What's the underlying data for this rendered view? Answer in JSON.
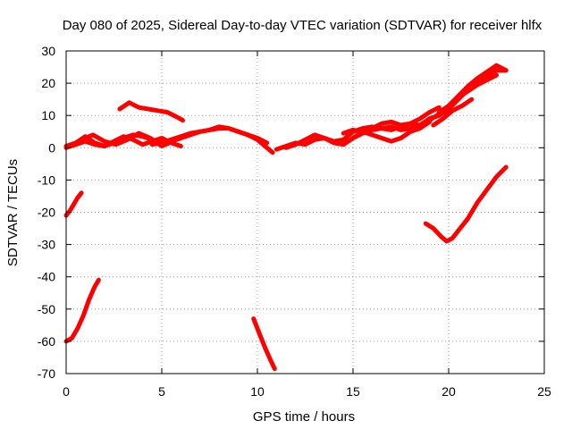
{
  "chart_data": {
    "type": "line",
    "title": "Day 080 of 2025, Sidereal Day-to-day VTEC variation (SDTVAR) for receiver hlfx",
    "xlabel": "GPS time / hours",
    "ylabel": "SDTVAR / TECUs",
    "xlim": [
      0,
      25
    ],
    "ylim": [
      -70,
      30
    ],
    "xticks": [
      0,
      5,
      10,
      15,
      20,
      25
    ],
    "yticks": [
      -70,
      -60,
      -50,
      -40,
      -30,
      -20,
      -10,
      0,
      10,
      20,
      30
    ],
    "grid": true,
    "color": "#ff0000",
    "series": [
      {
        "name": "arc-1",
        "x": [
          0,
          0.2,
          0.4,
          0.6,
          0.8
        ],
        "y": [
          -21,
          -19.5,
          -17.5,
          -15.5,
          -14
        ]
      },
      {
        "name": "arc-2",
        "x": [
          0,
          0.3,
          0.6,
          0.9,
          1.2,
          1.5,
          1.7
        ],
        "y": [
          -60,
          -59,
          -56,
          -52,
          -47,
          -43,
          -41
        ]
      },
      {
        "name": "arc-3",
        "x": [
          0,
          0.5,
          1,
          1.5,
          2,
          2.5,
          3,
          3.5,
          4,
          4.5,
          5,
          5.5,
          6
        ],
        "y": [
          0.5,
          1.5,
          3.5,
          1.5,
          0.5,
          1.5,
          3,
          4,
          3.5,
          2.5,
          1.5,
          2.5,
          3.5
        ]
      },
      {
        "name": "arc-4",
        "x": [
          0,
          0.5,
          1,
          1.5,
          2,
          2.5,
          3,
          3.5,
          4,
          4.5,
          5,
          5.5,
          6
        ],
        "y": [
          0,
          1,
          2,
          1,
          0.5,
          2,
          3.5,
          2.5,
          1,
          2,
          3,
          1.5,
          0.5
        ]
      },
      {
        "name": "arc-5",
        "x": [
          0.2,
          0.8,
          1.4,
          2,
          2.6,
          3.2,
          3.8,
          4.4,
          5,
          5.6
        ],
        "y": [
          0.5,
          2.5,
          4,
          2,
          1,
          2.5,
          4.5,
          3,
          0.5,
          2
        ]
      },
      {
        "name": "arc-6",
        "x": [
          2.8,
          3.3,
          3.8,
          4.3,
          4.8,
          5.3,
          5.8,
          6.1
        ],
        "y": [
          12,
          14,
          12.5,
          12,
          11.5,
          11,
          9.5,
          8.5
        ]
      },
      {
        "name": "arc-7",
        "x": [
          4.5,
          5,
          5.5,
          6,
          6.5,
          7,
          7.5,
          8,
          8.5,
          9,
          9.5,
          10,
          10.5,
          10.8
        ],
        "y": [
          1,
          1.5,
          2.5,
          3.5,
          4.5,
          5,
          5.5,
          6,
          6,
          5,
          4,
          2.5,
          0,
          -1.5
        ]
      },
      {
        "name": "arc-8",
        "x": [
          5.5,
          6,
          6.5,
          7,
          7.5,
          8,
          8.5,
          9,
          9.5,
          10,
          10.5
        ],
        "y": [
          2,
          3,
          4,
          5,
          5.5,
          6.5,
          6,
          5,
          4,
          3,
          1.5
        ]
      },
      {
        "name": "arc-9",
        "x": [
          9.8,
          10.1,
          10.4,
          10.7,
          10.9
        ],
        "y": [
          -53,
          -57.5,
          -62,
          -66,
          -68.5
        ]
      },
      {
        "name": "arc-10",
        "x": [
          11,
          11.5,
          12,
          12.5,
          13,
          13.5,
          14,
          14.5,
          15,
          15.5,
          16,
          16.5,
          17,
          17.5,
          18,
          18.5,
          19
        ],
        "y": [
          -0.5,
          0.5,
          1.5,
          1,
          2.5,
          3,
          1.5,
          1,
          3,
          5,
          4,
          3,
          2,
          3,
          5,
          6,
          8
        ]
      },
      {
        "name": "arc-11",
        "x": [
          11.5,
          12,
          12.5,
          13,
          13.5,
          14,
          14.5,
          15,
          15.5,
          16,
          16.5,
          17,
          17.5,
          18,
          18.5,
          19
        ],
        "y": [
          0,
          1,
          2.5,
          4,
          3,
          2,
          2.5,
          5,
          6,
          6.5,
          6,
          6.5,
          5.5,
          6,
          7,
          9
        ]
      },
      {
        "name": "arc-12",
        "x": [
          14.5,
          15,
          15.5,
          16,
          16.5,
          17,
          17.5,
          18,
          18.5,
          19,
          19.5
        ],
        "y": [
          4.5,
          5.5,
          5,
          6,
          7.5,
          8,
          7,
          7.5,
          9,
          11,
          12.5
        ]
      },
      {
        "name": "arc-13",
        "x": [
          15,
          15.5,
          16,
          16.5,
          17,
          17.5,
          18,
          18.5,
          19,
          19.5,
          20
        ],
        "y": [
          3,
          4.5,
          5.5,
          6,
          5.5,
          6.5,
          7.5,
          7,
          8.5,
          10.5,
          12
        ]
      },
      {
        "name": "arc-14",
        "x": [
          19,
          19.5,
          20,
          20.5,
          21,
          21.5,
          22,
          22.5,
          23
        ],
        "y": [
          9,
          10,
          12,
          15,
          18,
          20,
          22,
          24,
          24
        ]
      },
      {
        "name": "arc-15",
        "x": [
          19.5,
          20,
          20.5,
          21,
          21.5,
          22,
          22.5,
          23
        ],
        "y": [
          11,
          13,
          16,
          19,
          21.5,
          23.5,
          25.5,
          24
        ]
      },
      {
        "name": "arc-16",
        "x": [
          20,
          20.5,
          21,
          21.5,
          22,
          22.5
        ],
        "y": [
          13,
          15.5,
          17.5,
          19.5,
          21,
          22.5
        ]
      },
      {
        "name": "arc-17",
        "x": [
          19.2,
          19.7,
          20.2,
          20.7,
          21.2
        ],
        "y": [
          7,
          9,
          11.5,
          13,
          15
        ]
      },
      {
        "name": "arc-18",
        "x": [
          18.8,
          19.2,
          19.6,
          19.9,
          20.2,
          20.6,
          21,
          21.5,
          22,
          22.5,
          23
        ],
        "y": [
          -23.5,
          -25,
          -27.5,
          -29,
          -28,
          -25,
          -22,
          -17,
          -13,
          -9,
          -6
        ]
      }
    ]
  }
}
